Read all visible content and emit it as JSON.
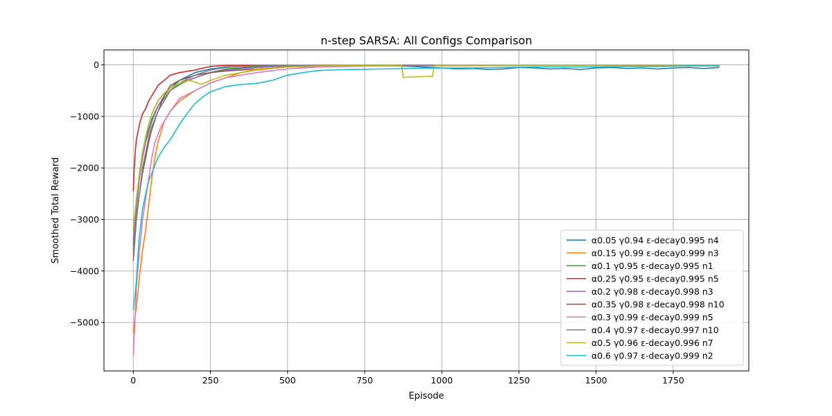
{
  "chart_data": {
    "type": "line",
    "title": "n-step SARSA: All Configs Comparison",
    "xlabel": "Episode",
    "ylabel": "Smoothed Total Reward",
    "xlim": [
      -95,
      1995
    ],
    "ylim": [
      -5940,
      290
    ],
    "xticks": [
      0,
      250,
      500,
      750,
      1000,
      1250,
      1500,
      1750
    ],
    "xtick_labels": [
      "0",
      "250",
      "500",
      "750",
      "1000",
      "1250",
      "1500",
      "1750"
    ],
    "yticks": [
      0,
      -1000,
      -2000,
      -3000,
      -4000,
      -5000
    ],
    "ytick_labels": [
      "0",
      "−1000",
      "−2000",
      "−3000",
      "−4000",
      "−5000"
    ],
    "grid": true,
    "legend_position": "lower-right",
    "series": [
      {
        "name": "α0.05 γ0.94 ε-decay0.995 n4",
        "color": "#1f77b4",
        "x": [
          0,
          5,
          10,
          20,
          30,
          40,
          50,
          60,
          80,
          100,
          120,
          150,
          200,
          250,
          300,
          400,
          500,
          600,
          700,
          800,
          900,
          1000,
          1050,
          1100,
          1150,
          1200,
          1250,
          1300,
          1350,
          1400,
          1450,
          1500,
          1550,
          1600,
          1650,
          1700,
          1750,
          1800,
          1850,
          1900
        ],
        "y": [
          -3200,
          -2900,
          -2600,
          -2100,
          -1700,
          -1400,
          -1150,
          -950,
          -700,
          -550,
          -450,
          -300,
          -150,
          -80,
          -40,
          -30,
          -20,
          -10,
          -10,
          -5,
          -30,
          -60,
          -80,
          -70,
          -90,
          -80,
          -50,
          -60,
          -80,
          -70,
          -90,
          -60,
          -50,
          -70,
          -60,
          -80,
          -60,
          -50,
          -70,
          -50
        ]
      },
      {
        "name": "α0.15 γ0.99 ε-decay0.999 n3",
        "color": "#ff7f0e",
        "x": [
          0,
          5,
          10,
          20,
          30,
          40,
          50,
          60,
          70,
          80,
          90,
          100,
          120,
          150,
          200,
          250,
          300,
          350,
          400,
          500,
          600,
          700,
          800,
          900,
          1000,
          1200,
          1400,
          1600,
          1800,
          1900
        ],
        "y": [
          -5200,
          -4900,
          -4700,
          -4100,
          -3600,
          -3200,
          -2700,
          -2200,
          -1800,
          -1500,
          -1300,
          -1100,
          -900,
          -700,
          -500,
          -350,
          -250,
          -150,
          -100,
          -40,
          -20,
          -10,
          -5,
          -5,
          -10,
          -5,
          -5,
          -5,
          -5,
          -5
        ]
      },
      {
        "name": "α0.1 γ0.95 ε-decay0.995 n1",
        "color": "#2ca02c",
        "x": [
          0,
          5,
          10,
          20,
          30,
          40,
          50,
          60,
          80,
          100,
          120,
          140,
          160,
          200,
          250,
          300,
          400,
          500,
          700,
          1000,
          1300,
          1600,
          1900
        ],
        "y": [
          -3500,
          -3100,
          -2700,
          -2100,
          -1700,
          -1450,
          -1250,
          -1050,
          -800,
          -650,
          -500,
          -420,
          -350,
          -250,
          -150,
          -80,
          -40,
          -20,
          -10,
          -5,
          -5,
          -5,
          -5
        ]
      },
      {
        "name": "α0.25 γ0.95 ε-decay0.995 n5",
        "color": "#d62728",
        "x": [
          0,
          3,
          6,
          10,
          15,
          20,
          25,
          30,
          40,
          50,
          60,
          70,
          80,
          100,
          120,
          150,
          200,
          250,
          300,
          400,
          600,
          800,
          1000,
          1300,
          1600,
          1900
        ],
        "y": [
          -2450,
          -2000,
          -1700,
          -1450,
          -1300,
          -1150,
          -1050,
          -950,
          -850,
          -700,
          -600,
          -500,
          -400,
          -300,
          -200,
          -150,
          -100,
          -30,
          -10,
          -10,
          -10,
          -20,
          -15,
          -10,
          -10,
          -10
        ]
      },
      {
        "name": "α0.2 γ0.98 ε-decay0.998 n3",
        "color": "#9467bd",
        "x": [
          0,
          5,
          10,
          20,
          30,
          40,
          50,
          60,
          80,
          100,
          120,
          150,
          200,
          250,
          300,
          400,
          500,
          700,
          1000,
          1300,
          1600,
          1900
        ],
        "y": [
          -3400,
          -3100,
          -2800,
          -2200,
          -1800,
          -1500,
          -1300,
          -1100,
          -800,
          -600,
          -450,
          -350,
          -250,
          -150,
          -100,
          -50,
          -20,
          -10,
          -10,
          -5,
          -5,
          -5
        ]
      },
      {
        "name": "α0.35 γ0.98 ε-decay0.998 n10",
        "color": "#8c564b",
        "x": [
          0,
          5,
          10,
          20,
          30,
          40,
          50,
          60,
          80,
          100,
          120,
          150,
          200,
          250,
          300,
          350,
          400,
          450,
          500,
          700,
          1000,
          1300,
          1600,
          1900
        ],
        "y": [
          -3800,
          -3400,
          -3000,
          -2500,
          -2100,
          -1800,
          -1500,
          -1250,
          -900,
          -600,
          -400,
          -300,
          -200,
          -150,
          -120,
          -100,
          -80,
          -60,
          -40,
          -20,
          -10,
          -5,
          -5,
          -5
        ]
      },
      {
        "name": "α0.3 γ0.99 ε-decay0.999 n5",
        "color": "#e377c2",
        "x": [
          0,
          5,
          10,
          20,
          30,
          40,
          50,
          60,
          70,
          80,
          90,
          100,
          120,
          150,
          200,
          250,
          300,
          400,
          500,
          600,
          800,
          1000,
          1200,
          1400,
          1600,
          1800,
          1900
        ],
        "y": [
          -5650,
          -5000,
          -4300,
          -3600,
          -3000,
          -2600,
          -2200,
          -1800,
          -1500,
          -1350,
          -1200,
          -1100,
          -900,
          -650,
          -500,
          -350,
          -250,
          -150,
          -80,
          -40,
          -20,
          -10,
          -5,
          -5,
          -5,
          -5,
          -5
        ]
      },
      {
        "name": "α0.4 γ0.97 ε-decay0.997 n10",
        "color": "#7f7f7f",
        "x": [
          0,
          5,
          10,
          20,
          30,
          40,
          50,
          60,
          80,
          100,
          120,
          150,
          200,
          250,
          300,
          400,
          500,
          700,
          1000,
          1300,
          1600,
          1900
        ],
        "y": [
          -3600,
          -3300,
          -3000,
          -2500,
          -2000,
          -1700,
          -1400,
          -1200,
          -900,
          -700,
          -500,
          -350,
          -200,
          -100,
          -50,
          -20,
          -10,
          -5,
          -5,
          -5,
          -5,
          -5
        ]
      },
      {
        "name": "α0.5 γ0.96 ε-decay0.996 n7",
        "color": "#bcbd22",
        "x": [
          0,
          5,
          10,
          20,
          30,
          40,
          50,
          60,
          80,
          100,
          120,
          150,
          180,
          200,
          220,
          250,
          300,
          350,
          400,
          500,
          600,
          700,
          800,
          870,
          875,
          880,
          970,
          975,
          980,
          1100,
          1300,
          1600,
          1900
        ],
        "y": [
          -3200,
          -2900,
          -2600,
          -2100,
          -1700,
          -1400,
          -1150,
          -950,
          -700,
          -550,
          -450,
          -350,
          -300,
          -330,
          -380,
          -300,
          -200,
          -150,
          -80,
          -40,
          -20,
          -10,
          -10,
          -10,
          -250,
          -240,
          -220,
          -10,
          -5,
          -5,
          -5,
          -5,
          -5
        ]
      },
      {
        "name": "α0.6 γ0.97 ε-decay0.999 n2",
        "color": "#17becf",
        "x": [
          0,
          5,
          10,
          15,
          20,
          30,
          40,
          50,
          60,
          70,
          80,
          100,
          120,
          150,
          180,
          200,
          230,
          250,
          300,
          350,
          400,
          450,
          500,
          550,
          600,
          700,
          800,
          900,
          1000,
          1100,
          1200,
          1300,
          1400,
          1500,
          1600,
          1700,
          1800,
          1900
        ],
        "y": [
          -4750,
          -4500,
          -4200,
          -3700,
          -3300,
          -2800,
          -2500,
          -2250,
          -2100,
          -1950,
          -1800,
          -1600,
          -1450,
          -1150,
          -900,
          -750,
          -600,
          -520,
          -420,
          -380,
          -360,
          -300,
          -200,
          -150,
          -110,
          -90,
          -80,
          -70,
          -60,
          -60,
          -50,
          -40,
          -40,
          -40,
          -30,
          -30,
          -20,
          -20
        ]
      }
    ]
  }
}
